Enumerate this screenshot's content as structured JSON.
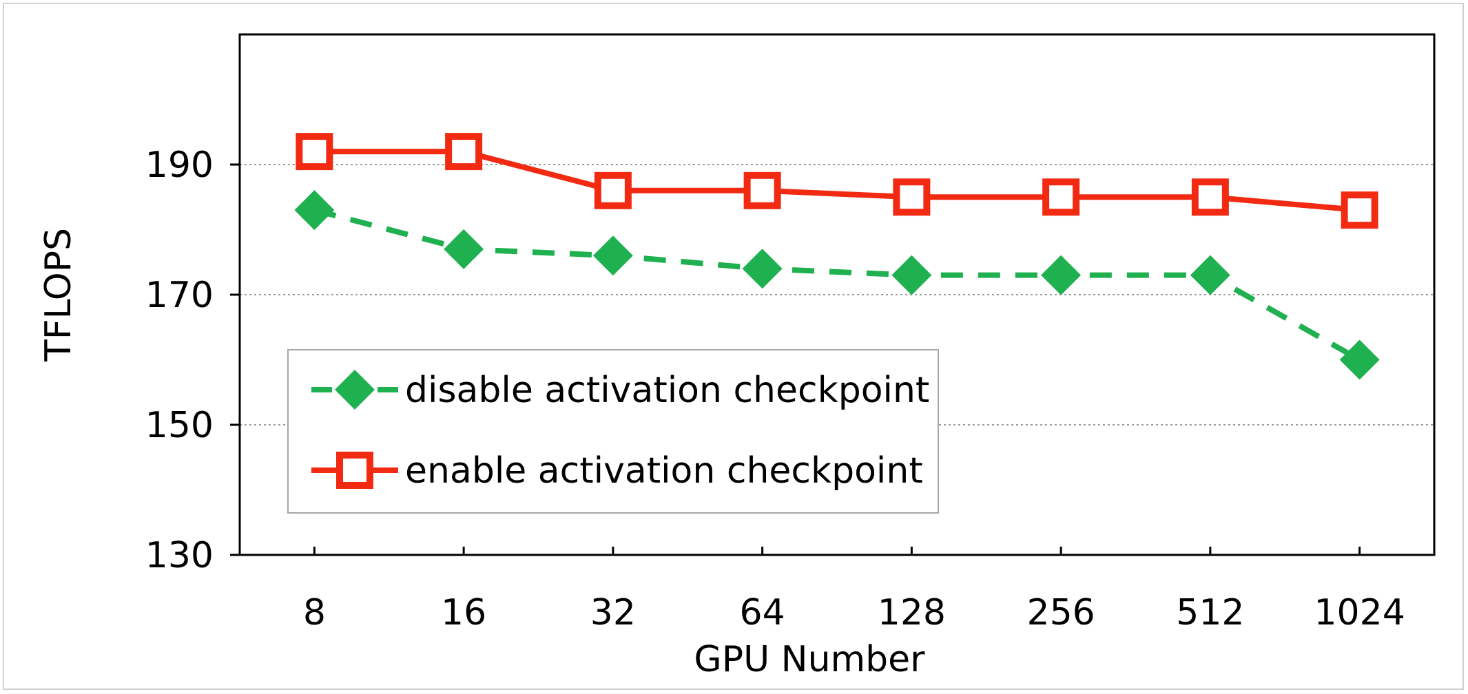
{
  "chart_data": {
    "type": "line",
    "title": "",
    "xlabel": "GPU Number",
    "ylabel": "TFLOPS",
    "categories": [
      "8",
      "16",
      "32",
      "64",
      "128",
      "256",
      "512",
      "1024"
    ],
    "ylim": [
      130,
      210
    ],
    "yticks": [
      "130",
      "150",
      "170",
      "190"
    ],
    "ytick_values": [
      130,
      150,
      170,
      190
    ],
    "grid": "horizontal dotted",
    "legend_position": "lower-left",
    "series": [
      {
        "name": "disable activation checkpoint",
        "values": [
          183,
          177,
          176,
          174,
          173,
          173,
          173,
          160
        ],
        "color": "#1fb04f",
        "line_style": "dashed",
        "marker": "diamond"
      },
      {
        "name": "enable activation checkpoint",
        "values": [
          192,
          192,
          186,
          186,
          185,
          185,
          185,
          183
        ],
        "color": "#f22a12",
        "line_style": "solid",
        "marker": "open-square"
      }
    ]
  }
}
